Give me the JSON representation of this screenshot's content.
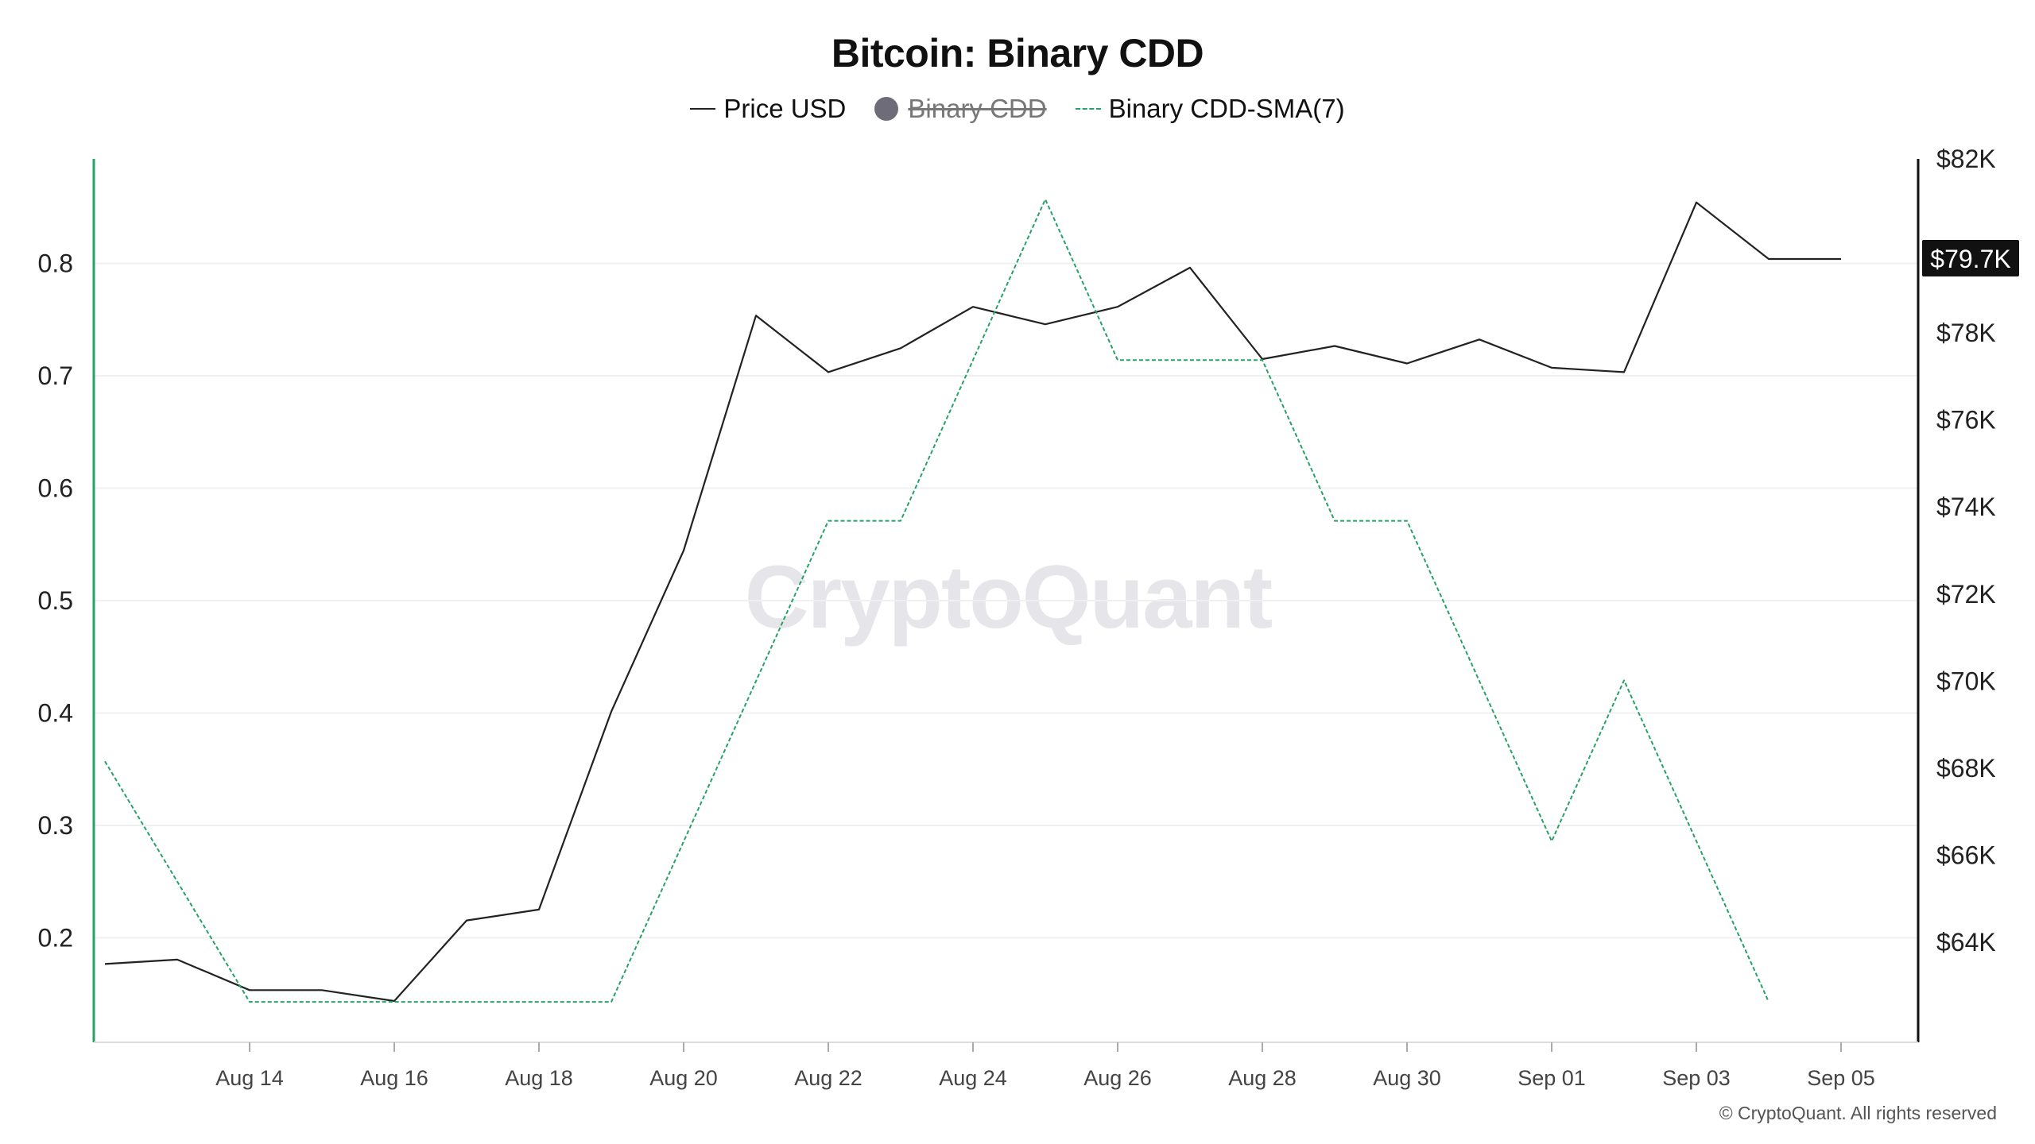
{
  "chart_data": {
    "type": "line",
    "title": "Bitcoin: Binary CDD",
    "legend": [
      {
        "label": "Price USD",
        "style": "solid-line",
        "color": "#222222",
        "hidden": false
      },
      {
        "label": "Binary CDD",
        "style": "dot",
        "color": "#6f6c79",
        "hidden": true
      },
      {
        "label": "Binary CDD-SMA(7)",
        "style": "dashed-line",
        "color": "#26a269",
        "hidden": false
      }
    ],
    "x_labels": [
      "Aug 14",
      "Aug 16",
      "Aug 18",
      "Aug 20",
      "Aug 22",
      "Aug 24",
      "Aug 26",
      "Aug 28",
      "Aug 30",
      "Sep 01",
      "Sep 03",
      "Sep 05"
    ],
    "x": [
      "Aug 12",
      "Aug 13",
      "Aug 14",
      "Aug 15",
      "Aug 16",
      "Aug 17",
      "Aug 18",
      "Aug 19",
      "Aug 20",
      "Aug 21",
      "Aug 22",
      "Aug 23",
      "Aug 24",
      "Aug 25",
      "Aug 26",
      "Aug 27",
      "Aug 28",
      "Aug 29",
      "Aug 30",
      "Aug 31",
      "Sep 01",
      "Sep 02",
      "Sep 03",
      "Sep 04",
      "Sep 05"
    ],
    "left_axis": {
      "ticks": [
        "0.8",
        "0.7",
        "0.6",
        "0.5",
        "0.4",
        "0.3",
        "0.2"
      ],
      "tick_values": [
        0.8,
        0.7,
        0.6,
        0.5,
        0.4,
        0.3,
        0.2
      ],
      "range": [
        0.107,
        0.893
      ]
    },
    "right_axis": {
      "ticks": [
        "$82K",
        "$78K",
        "$76K",
        "$74K",
        "$72K",
        "$70K",
        "$68K",
        "$66K",
        "$64K"
      ],
      "tick_values": [
        82000,
        78000,
        76000,
        74000,
        72000,
        70000,
        68000,
        66000,
        64000
      ],
      "range": [
        61700,
        82000
      ],
      "current_label": "$79.7K",
      "current_value": 79700
    },
    "series": [
      {
        "name": "Price USD",
        "axis": "right",
        "color": "#222222",
        "values": [
          63500,
          63600,
          62900,
          62900,
          62650,
          64500,
          64750,
          69300,
          73000,
          78400,
          77100,
          77650,
          78600,
          78200,
          78600,
          79500,
          77400,
          77700,
          77300,
          77850,
          77200,
          77100,
          81000,
          79700,
          79700
        ]
      },
      {
        "name": "Binary CDD-SMA(7)",
        "axis": "left",
        "color": "#26a269",
        "values": [
          0.357,
          null,
          0.143,
          0.143,
          0.143,
          0.143,
          0.143,
          0.143,
          null,
          null,
          0.571,
          0.571,
          null,
          0.857,
          0.714,
          0.714,
          0.714,
          0.571,
          0.571,
          null,
          0.286,
          0.429,
          null,
          0.143,
          null
        ]
      }
    ],
    "grid": true,
    "watermark": "CryptoQuant"
  },
  "footer": {
    "copyright": "© CryptoQuant. All rights reserved"
  }
}
